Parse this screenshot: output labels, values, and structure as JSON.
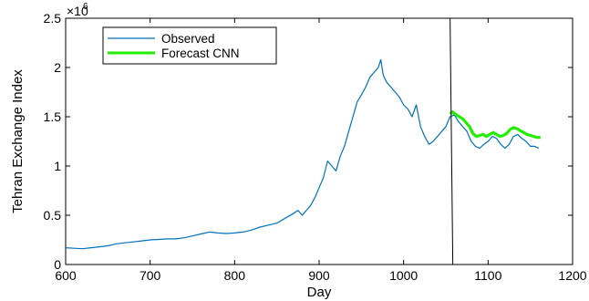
{
  "chart_data": {
    "type": "line",
    "xlabel": "Day",
    "ylabel": "Tehran Exchange Index",
    "y_multiplier_label": "×10",
    "y_multiplier_exponent": "6",
    "xlim": [
      600,
      1200
    ],
    "ylim": [
      0,
      2.5
    ],
    "x_ticks": [
      "600",
      "700",
      "800",
      "900",
      "1000",
      "1100",
      "1200"
    ],
    "y_ticks": [
      "0",
      "0.5",
      "1",
      "1.5",
      "2",
      "2.5"
    ],
    "grid": false,
    "legend_position": "top-left",
    "forecast_start_line_x": 1055,
    "colors": {
      "observed": "#0072bd",
      "forecast": "#22ee00",
      "vertical_line": "#000000"
    },
    "series": [
      {
        "name": "Observed",
        "points": [
          [
            600,
            0.17
          ],
          [
            610,
            0.165
          ],
          [
            620,
            0.16
          ],
          [
            630,
            0.17
          ],
          [
            640,
            0.18
          ],
          [
            650,
            0.19
          ],
          [
            660,
            0.21
          ],
          [
            670,
            0.22
          ],
          [
            680,
            0.23
          ],
          [
            690,
            0.24
          ],
          [
            700,
            0.25
          ],
          [
            710,
            0.255
          ],
          [
            720,
            0.26
          ],
          [
            730,
            0.26
          ],
          [
            740,
            0.27
          ],
          [
            750,
            0.29
          ],
          [
            760,
            0.31
          ],
          [
            770,
            0.33
          ],
          [
            780,
            0.32
          ],
          [
            790,
            0.315
          ],
          [
            800,
            0.32
          ],
          [
            810,
            0.33
          ],
          [
            820,
            0.35
          ],
          [
            830,
            0.38
          ],
          [
            840,
            0.4
          ],
          [
            850,
            0.42
          ],
          [
            860,
            0.47
          ],
          [
            870,
            0.52
          ],
          [
            875,
            0.55
          ],
          [
            880,
            0.5
          ],
          [
            890,
            0.6
          ],
          [
            895,
            0.68
          ],
          [
            900,
            0.78
          ],
          [
            905,
            0.88
          ],
          [
            910,
            1.05
          ],
          [
            915,
            1.0
          ],
          [
            920,
            0.95
          ],
          [
            925,
            1.1
          ],
          [
            930,
            1.2
          ],
          [
            935,
            1.35
          ],
          [
            940,
            1.5
          ],
          [
            945,
            1.65
          ],
          [
            950,
            1.72
          ],
          [
            955,
            1.8
          ],
          [
            960,
            1.9
          ],
          [
            965,
            1.95
          ],
          [
            970,
            2.0
          ],
          [
            973,
            2.08
          ],
          [
            976,
            1.92
          ],
          [
            980,
            1.85
          ],
          [
            985,
            1.8
          ],
          [
            990,
            1.75
          ],
          [
            995,
            1.7
          ],
          [
            1000,
            1.62
          ],
          [
            1005,
            1.58
          ],
          [
            1010,
            1.5
          ],
          [
            1015,
            1.62
          ],
          [
            1020,
            1.4
          ],
          [
            1025,
            1.3
          ],
          [
            1030,
            1.22
          ],
          [
            1035,
            1.25
          ],
          [
            1040,
            1.3
          ],
          [
            1045,
            1.35
          ],
          [
            1050,
            1.4
          ],
          [
            1055,
            1.5
          ],
          [
            1060,
            1.52
          ],
          [
            1065,
            1.45
          ],
          [
            1070,
            1.4
          ],
          [
            1075,
            1.35
          ],
          [
            1080,
            1.25
          ],
          [
            1085,
            1.2
          ],
          [
            1090,
            1.18
          ],
          [
            1095,
            1.22
          ],
          [
            1100,
            1.25
          ],
          [
            1105,
            1.3
          ],
          [
            1110,
            1.28
          ],
          [
            1115,
            1.22
          ],
          [
            1120,
            1.18
          ],
          [
            1125,
            1.22
          ],
          [
            1130,
            1.3
          ],
          [
            1135,
            1.32
          ],
          [
            1140,
            1.28
          ],
          [
            1145,
            1.25
          ],
          [
            1150,
            1.2
          ],
          [
            1155,
            1.2
          ],
          [
            1160,
            1.18
          ]
        ]
      },
      {
        "name": "Forecast CNN",
        "points": [
          [
            1055,
            1.53
          ],
          [
            1058,
            1.55
          ],
          [
            1062,
            1.52
          ],
          [
            1066,
            1.5
          ],
          [
            1070,
            1.48
          ],
          [
            1074,
            1.44
          ],
          [
            1078,
            1.4
          ],
          [
            1082,
            1.33
          ],
          [
            1086,
            1.3
          ],
          [
            1090,
            1.31
          ],
          [
            1094,
            1.32
          ],
          [
            1098,
            1.3
          ],
          [
            1102,
            1.32
          ],
          [
            1106,
            1.34
          ],
          [
            1110,
            1.32
          ],
          [
            1114,
            1.3
          ],
          [
            1118,
            1.31
          ],
          [
            1122,
            1.33
          ],
          [
            1126,
            1.37
          ],
          [
            1130,
            1.39
          ],
          [
            1134,
            1.38
          ],
          [
            1138,
            1.36
          ],
          [
            1142,
            1.34
          ],
          [
            1146,
            1.32
          ],
          [
            1150,
            1.31
          ],
          [
            1154,
            1.3
          ],
          [
            1158,
            1.29
          ],
          [
            1162,
            1.29
          ]
        ]
      }
    ]
  }
}
